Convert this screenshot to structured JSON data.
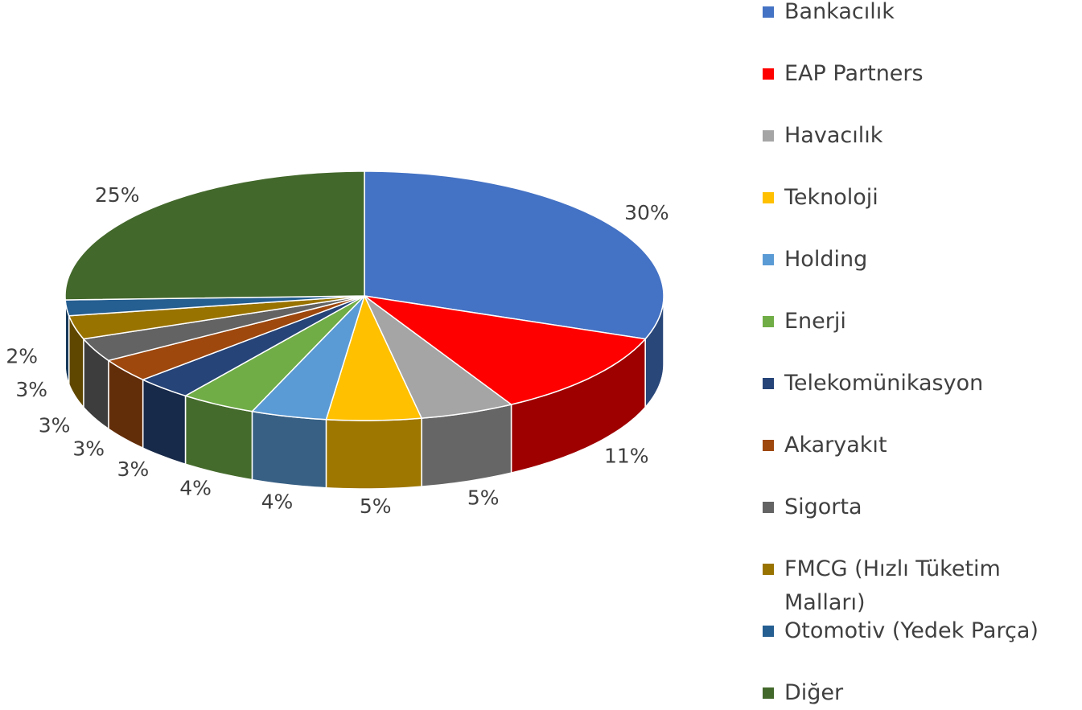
{
  "chart_data": {
    "type": "pie3d",
    "categories": [
      "Bankacılık",
      "EAP Partners",
      "Havacılık",
      "Teknoloji",
      "Holding",
      "Enerji",
      "Telekomünikasyon",
      "Akaryakıt",
      "Sigorta",
      "FMCG (Hızlı Tüketim Malları)",
      "Otomotiv (Yedek Parça)",
      "Diğer"
    ],
    "values": [
      30,
      11,
      5,
      5,
      4,
      4,
      3,
      3,
      3,
      3,
      2,
      25
    ],
    "value_labels": [
      "30%",
      "11%",
      "5%",
      "5%",
      "4%",
      "4%",
      "3%",
      "3%",
      "3%",
      "3%",
      "2%",
      "25%"
    ],
    "colors": [
      "#4472c4",
      "#ff0000",
      "#a5a5a5",
      "#ffc000",
      "#5b9bd5",
      "#70ad47",
      "#264478",
      "#9e480e",
      "#636363",
      "#997300",
      "#255e91",
      "#43682b"
    ],
    "legend": "right"
  }
}
